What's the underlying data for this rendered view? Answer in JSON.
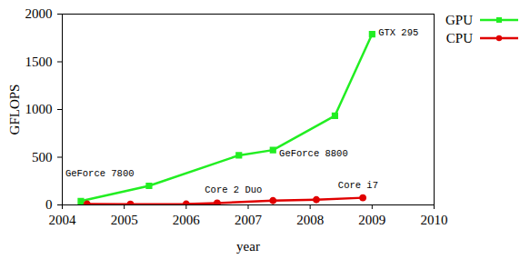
{
  "chart_data": {
    "type": "line",
    "x_label": "year",
    "y_label": "GFLOPS",
    "xlim": [
      2004,
      2010
    ],
    "xticks": [
      2004,
      2005,
      2006,
      2007,
      2008,
      2009,
      2010
    ],
    "ylim": [
      0,
      2000
    ],
    "yticks": [
      0,
      500,
      1000,
      1500,
      2000
    ],
    "grid": false,
    "legend": "right",
    "series": [
      {
        "name": "GPU",
        "color": "#22ee22",
        "marker": "square",
        "line_style": "solid",
        "x": [
          2004.3,
          2005.4,
          2006.85,
          2007.4,
          2008.4,
          2009.0
        ],
        "values": [
          40,
          200,
          520,
          575,
          935,
          1790
        ]
      },
      {
        "name": "CPU",
        "color": "#e00000",
        "marker": "circle",
        "line_style": "solid",
        "x": [
          2004.4,
          2005.1,
          2006.0,
          2006.5,
          2007.4,
          2008.1,
          2008.85
        ],
        "values": [
          10,
          8,
          10,
          20,
          45,
          55,
          75
        ]
      }
    ],
    "annotations": [
      {
        "text": "GeForce 7800",
        "x": 2004.05,
        "y": 330
      },
      {
        "text": "GeForce 8800",
        "x": 2007.5,
        "y": 540
      },
      {
        "text": "GTX 295",
        "x": 2009.1,
        "y": 1810
      },
      {
        "text": "Core 2 Duo",
        "x": 2006.3,
        "y": 160
      },
      {
        "text": "Core i7",
        "x": 2008.45,
        "y": 210
      }
    ]
  }
}
